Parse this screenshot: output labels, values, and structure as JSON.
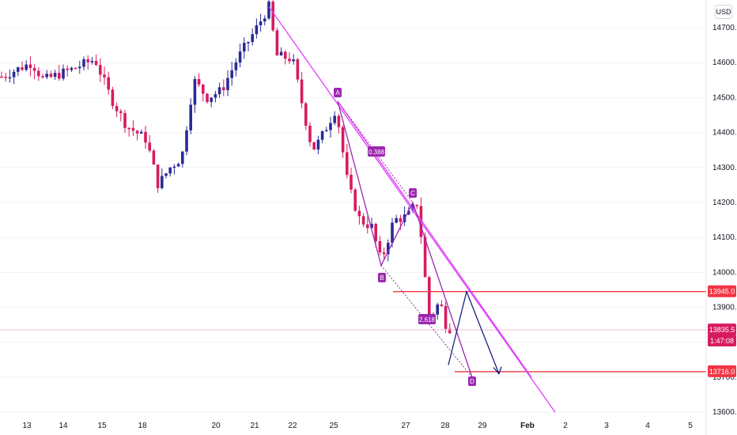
{
  "header": {
    "currency": "USD"
  },
  "colors": {
    "up": "#2a2b96",
    "down": "#d81b60",
    "pattern": "#9c27b0",
    "trendline": "#e040fb",
    "level": "#f23645",
    "projection": "#1a237e",
    "badge_bg": "#9c27b0",
    "grid": "#f0f3fa"
  },
  "chart_data": {
    "type": "candlestick",
    "currency": "USD",
    "y_axis": {
      "ticks": [
        "14700.0",
        "14600.0",
        "14500.0",
        "14400.0",
        "14300.0",
        "14200.0",
        "14100.0",
        "14000.0",
        "13900.0",
        "13800.0",
        "13700.0",
        "13600.0"
      ],
      "ylim": [
        13600,
        14780
      ]
    },
    "x_axis": {
      "ticks": [
        "13",
        "14",
        "15",
        "18",
        "20",
        "21",
        "22",
        "25",
        "27",
        "28",
        "29",
        "Feb",
        "2",
        "3",
        "4",
        "5"
      ],
      "bold": [
        "Feb"
      ]
    },
    "price_labels": [
      {
        "text": "13945.0",
        "value": 13945.0,
        "color": "#f23645"
      },
      {
        "text": "13835.5",
        "value": 13835.5,
        "color": "#d81b60"
      },
      {
        "text": "1:47:08",
        "value": 13804.0,
        "color": "#d81b60"
      },
      {
        "text": "13716.0",
        "value": 13716.0,
        "color": "#f23645"
      }
    ],
    "current_price": 13835.5,
    "horizontal_levels": [
      13945.0,
      13716.0
    ],
    "pattern_points": [
      {
        "label": "A",
        "value": 14490
      },
      {
        "label": "B",
        "value": 14020
      },
      {
        "label": "C",
        "value": 14200
      },
      {
        "label": "D",
        "value": 13700
      }
    ],
    "ratio_labels": [
      "0.388",
      "2.618"
    ]
  }
}
